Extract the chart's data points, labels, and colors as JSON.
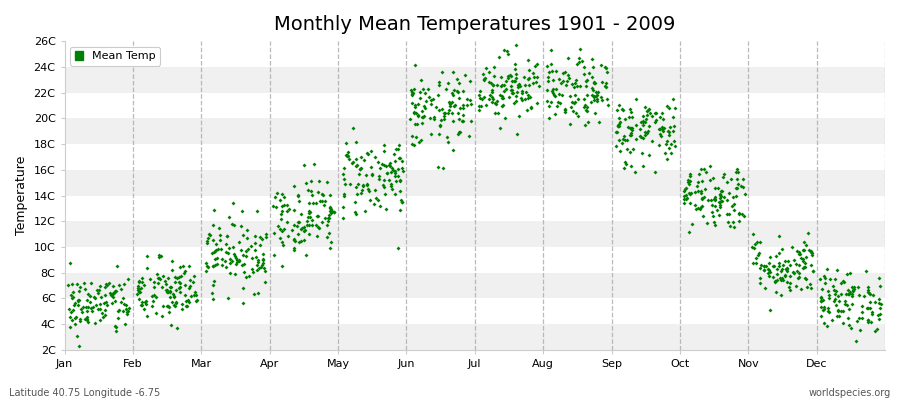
{
  "title": "Monthly Mean Temperatures 1901 - 2009",
  "ylabel": "Temperature",
  "subtitle_left": "Latitude 40.75 Longitude -6.75",
  "subtitle_right": "worldspecies.org",
  "legend_label": "Mean Temp",
  "marker_color": "#008000",
  "bg_color": "#ffffff",
  "stripe_color": "#f0f0f0",
  "dashed_color": "#aaaaaa",
  "ylim": [
    2,
    26
  ],
  "yticks": [
    2,
    4,
    6,
    8,
    10,
    12,
    14,
    16,
    18,
    20,
    22,
    24,
    26
  ],
  "ytick_labels": [
    "2C",
    "4C",
    "6C",
    "8C",
    "10C",
    "12C",
    "14C",
    "16C",
    "18C",
    "20C",
    "22C",
    "24C",
    "26C"
  ],
  "months": [
    "Jan",
    "Feb",
    "Mar",
    "Apr",
    "May",
    "Jun",
    "Jul",
    "Aug",
    "Sep",
    "Oct",
    "Nov",
    "Dec"
  ],
  "monthly_means": [
    5.5,
    6.5,
    9.5,
    12.5,
    15.5,
    20.5,
    22.5,
    22.0,
    19.0,
    14.0,
    8.5,
    5.8
  ],
  "monthly_stds": [
    1.2,
    1.3,
    1.4,
    1.5,
    1.6,
    1.5,
    1.3,
    1.3,
    1.4,
    1.3,
    1.2,
    1.2
  ],
  "n_years": 109,
  "seed": 42,
  "marker_size": 4,
  "title_fontsize": 14,
  "axis_fontsize": 8,
  "label_fontsize": 9
}
